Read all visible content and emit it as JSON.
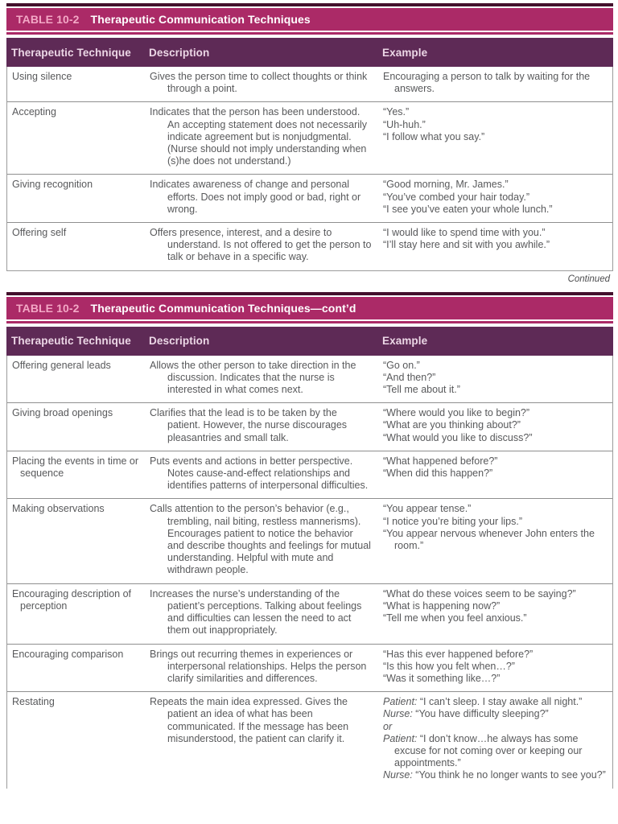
{
  "page": {
    "continued_note": "Continued"
  },
  "tables": [
    {
      "title_label": "TABLE 10-2",
      "title": "Therapeutic Communication Techniques",
      "columns": [
        "Therapeutic Technique",
        "Description",
        "Example"
      ],
      "rows": [
        {
          "technique": "Using silence",
          "description": "Gives the person time to collect thoughts or think through a point.",
          "examples": [
            {
              "text": "Encouraging a person to talk by waiting for the answers."
            }
          ]
        },
        {
          "technique": "Accepting",
          "description": "Indicates that the person has been understood. An accepting statement does not necessarily indicate agreement but is nonjudgmental. (Nurse should not imply understanding when (s)he does not understand.)",
          "examples": [
            {
              "text": "“Yes.”"
            },
            {
              "text": "“Uh-huh.”"
            },
            {
              "text": "“I follow what you say.”"
            }
          ]
        },
        {
          "technique": "Giving recognition",
          "description": "Indicates awareness of change and personal efforts. Does not imply good or bad, right or wrong.",
          "examples": [
            {
              "text": "“Good morning, Mr. James.”"
            },
            {
              "text": "“You’ve combed your hair today.”"
            },
            {
              "text": "“I see you’ve eaten your whole lunch.”"
            }
          ]
        },
        {
          "technique": "Offering self",
          "description": "Offers presence, interest, and a desire to understand. Is not offered to get the person to talk or behave in a specific way.",
          "examples": [
            {
              "text": "“I would like to spend time with you.”"
            },
            {
              "text": "“I’ll stay here and sit with you awhile.”"
            }
          ]
        }
      ]
    },
    {
      "title_label": "TABLE 10-2",
      "title": "Therapeutic Communication Techniques—cont’d",
      "columns": [
        "Therapeutic Technique",
        "Description",
        "Example"
      ],
      "rows": [
        {
          "technique": "Offering general leads",
          "description": "Allows the other person to take direction in the discussion. Indicates that the nurse is interested in what comes next.",
          "examples": [
            {
              "text": "“Go on.”"
            },
            {
              "text": "“And then?”"
            },
            {
              "text": "“Tell me about it.”"
            }
          ]
        },
        {
          "technique": "Giving broad openings",
          "description": "Clarifies that the lead is to be taken by the patient. However, the nurse discourages pleasantries and small talk.",
          "examples": [
            {
              "text": "“Where would you like to begin?”"
            },
            {
              "text": "“What are you thinking about?”"
            },
            {
              "text": "“What would you like to discuss?”"
            }
          ]
        },
        {
          "technique": "Placing the events in time or sequence",
          "description": "Puts events and actions in better perspective. Notes cause-and-effect relationships and identifies patterns of interpersonal difficulties.",
          "examples": [
            {
              "text": "“What happened before?”"
            },
            {
              "text": "“When did this happen?”"
            }
          ]
        },
        {
          "technique": "Making observations",
          "description": "Calls attention to the person’s behavior (e.g., trembling, nail biting, restless mannerisms). Encourages patient to notice the behavior and describe thoughts and feelings for mutual understanding. Helpful with mute and withdrawn people.",
          "examples": [
            {
              "text": "“You appear tense.”"
            },
            {
              "text": "“I notice you’re biting your lips.”"
            },
            {
              "text": "“You appear nervous whenever John enters the room.”"
            }
          ]
        },
        {
          "technique": "Encouraging description of perception",
          "description": "Increases the nurse’s understanding of the patient’s perceptions. Talking about feelings and difficulties can lessen the need to act them out inappropriately.",
          "examples": [
            {
              "text": "“What do these voices seem to be saying?”"
            },
            {
              "text": "“What is happening now?”"
            },
            {
              "text": "“Tell me when you feel anxious.”"
            }
          ]
        },
        {
          "technique": "Encouraging comparison",
          "description": "Brings out recurring themes in experiences or interpersonal relationships. Helps the person clarify similarities and differences.",
          "examples": [
            {
              "text": "“Has this ever happened before?”"
            },
            {
              "text": "“Is this how you felt when…?”"
            },
            {
              "text": "“Was it something like…?”"
            }
          ]
        },
        {
          "technique": "Restating",
          "description": "Repeats the main idea expressed. Gives the patient an idea of what has been communicated. If the message has been misunderstood, the patient can clarify it.",
          "examples": [
            {
              "speaker": "Patient:",
              "text": "“I can’t sleep. I stay awake all night.”"
            },
            {
              "speaker": "Nurse:",
              "text": "“You have difficulty sleeping?”"
            },
            {
              "speaker": "or",
              "text": ""
            },
            {
              "speaker": "Patient:",
              "text": "“I don’t know…he always has some excuse for not coming over or keeping our appointments.”"
            },
            {
              "speaker": "Nurse:",
              "text": "“You think he no longer wants to see you?”"
            }
          ]
        }
      ]
    }
  ]
}
